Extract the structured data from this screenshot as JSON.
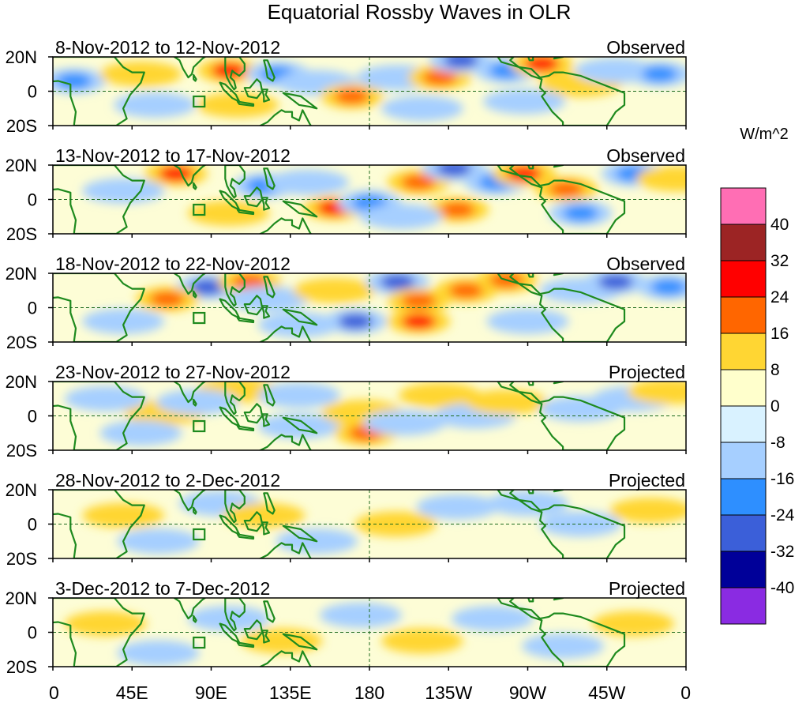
{
  "chart_data": {
    "type": "heatmap",
    "title": "Equatorial Rossby Waves in OLR",
    "units_label": "W/m^2",
    "x_ticks": [
      "0",
      "45E",
      "90E",
      "135E",
      "180",
      "135W",
      "90W",
      "45W",
      "0"
    ],
    "y_ticks": [
      "20N",
      "0",
      "20S"
    ],
    "colorbar": {
      "levels": [
        "40",
        "32",
        "24",
        "16",
        "8",
        "0",
        "-8",
        "-16",
        "-24",
        "-32",
        "-40"
      ],
      "colors": [
        "#ff6eb4",
        "#9c2424",
        "#ff0000",
        "#ff6600",
        "#ffd633",
        "#ffffcc",
        "#d9f2ff",
        "#a6cfff",
        "#2e8fff",
        "#3b5fd9",
        "#000099",
        "#8a2be2"
      ]
    },
    "panels": [
      {
        "period": "8-Nov-2012 to 12-Nov-2012",
        "status": "Observed",
        "anomalies": [
          {
            "lon": 12,
            "lat": 6,
            "value": -16
          },
          {
            "lon": 50,
            "lat": 10,
            "value": 8
          },
          {
            "lon": 100,
            "lat": 12,
            "value": 24
          },
          {
            "lon": 105,
            "lat": -8,
            "value": 8
          },
          {
            "lon": 128,
            "lat": 10,
            "value": -16
          },
          {
            "lon": 150,
            "lat": 5,
            "value": -8
          },
          {
            "lon": 170,
            "lat": -3,
            "value": 16
          },
          {
            "lon": 196,
            "lat": 8,
            "value": -8
          },
          {
            "lon": 220,
            "lat": 8,
            "value": 16
          },
          {
            "lon": 232,
            "lat": 18,
            "value": -24
          },
          {
            "lon": 258,
            "lat": 12,
            "value": -16
          },
          {
            "lon": 278,
            "lat": 16,
            "value": 24
          },
          {
            "lon": 300,
            "lat": 4,
            "value": 8
          },
          {
            "lon": 320,
            "lat": 12,
            "value": -8
          },
          {
            "lon": 345,
            "lat": 10,
            "value": -16
          },
          {
            "lon": 268,
            "lat": -6,
            "value": -8
          },
          {
            "lon": 210,
            "lat": -10,
            "value": -8
          },
          {
            "lon": 58,
            "lat": -8,
            "value": -8
          }
        ]
      },
      {
        "period": "13-Nov-2012 to 17-Nov-2012",
        "status": "Observed",
        "anomalies": [
          {
            "lon": 70,
            "lat": 15,
            "value": 24
          },
          {
            "lon": 40,
            "lat": 5,
            "value": -8
          },
          {
            "lon": 120,
            "lat": 8,
            "value": -16
          },
          {
            "lon": 100,
            "lat": -8,
            "value": 8
          },
          {
            "lon": 160,
            "lat": -5,
            "value": 24
          },
          {
            "lon": 180,
            "lat": -2,
            "value": -16
          },
          {
            "lon": 208,
            "lat": 10,
            "value": 16
          },
          {
            "lon": 228,
            "lat": 18,
            "value": -24
          },
          {
            "lon": 230,
            "lat": -6,
            "value": 16
          },
          {
            "lon": 252,
            "lat": 10,
            "value": -16
          },
          {
            "lon": 268,
            "lat": 15,
            "value": 24
          },
          {
            "lon": 292,
            "lat": 6,
            "value": 16
          },
          {
            "lon": 300,
            "lat": -8,
            "value": -16
          },
          {
            "lon": 330,
            "lat": 15,
            "value": -16
          },
          {
            "lon": 355,
            "lat": 12,
            "value": 8
          },
          {
            "lon": 145,
            "lat": 10,
            "value": -8
          },
          {
            "lon": 198,
            "lat": -10,
            "value": -8
          }
        ]
      },
      {
        "period": "18-Nov-2012 to 22-Nov-2012",
        "status": "Observed",
        "anomalies": [
          {
            "lon": 88,
            "lat": 12,
            "value": -24
          },
          {
            "lon": 65,
            "lat": 5,
            "value": 16
          },
          {
            "lon": 112,
            "lat": 15,
            "value": 16
          },
          {
            "lon": 122,
            "lat": 5,
            "value": -8
          },
          {
            "lon": 160,
            "lat": 10,
            "value": 8
          },
          {
            "lon": 172,
            "lat": -8,
            "value": -24
          },
          {
            "lon": 196,
            "lat": 15,
            "value": -24
          },
          {
            "lon": 208,
            "lat": 4,
            "value": 16
          },
          {
            "lon": 208,
            "lat": -8,
            "value": 24
          },
          {
            "lon": 235,
            "lat": 10,
            "value": 16
          },
          {
            "lon": 258,
            "lat": 16,
            "value": 16
          },
          {
            "lon": 300,
            "lat": 10,
            "value": -8
          },
          {
            "lon": 320,
            "lat": 15,
            "value": -24
          },
          {
            "lon": 350,
            "lat": 12,
            "value": -16
          },
          {
            "lon": 40,
            "lat": -8,
            "value": -8
          },
          {
            "lon": 140,
            "lat": -10,
            "value": -8
          },
          {
            "lon": 270,
            "lat": -8,
            "value": -8
          }
        ]
      },
      {
        "period": "23-Nov-2012 to 27-Nov-2012",
        "status": "Projected",
        "anomalies": [
          {
            "lon": 105,
            "lat": 15,
            "value": 8
          },
          {
            "lon": 64,
            "lat": 2,
            "value": 8
          },
          {
            "lon": 82,
            "lat": 8,
            "value": -8
          },
          {
            "lon": 140,
            "lat": 12,
            "value": -8
          },
          {
            "lon": 140,
            "lat": -6,
            "value": -8
          },
          {
            "lon": 176,
            "lat": 2,
            "value": 8
          },
          {
            "lon": 178,
            "lat": -10,
            "value": 16
          },
          {
            "lon": 200,
            "lat": -4,
            "value": -8
          },
          {
            "lon": 220,
            "lat": 12,
            "value": 8
          },
          {
            "lon": 240,
            "lat": 0,
            "value": -8
          },
          {
            "lon": 258,
            "lat": 8,
            "value": 8
          },
          {
            "lon": 300,
            "lat": 4,
            "value": -8
          },
          {
            "lon": 330,
            "lat": 10,
            "value": -8
          },
          {
            "lon": 350,
            "lat": 14,
            "value": 8
          },
          {
            "lon": 50,
            "lat": -10,
            "value": -8
          },
          {
            "lon": 30,
            "lat": 10,
            "value": -8
          }
        ]
      },
      {
        "period": "28-Nov-2012 to 2-Dec-2012",
        "status": "Projected",
        "anomalies": [
          {
            "lon": 40,
            "lat": 5,
            "value": 8
          },
          {
            "lon": 60,
            "lat": -10,
            "value": -8
          },
          {
            "lon": 95,
            "lat": 12,
            "value": -8
          },
          {
            "lon": 120,
            "lat": 5,
            "value": 8
          },
          {
            "lon": 150,
            "lat": -10,
            "value": -8
          },
          {
            "lon": 195,
            "lat": 0,
            "value": 8
          },
          {
            "lon": 230,
            "lat": 10,
            "value": -8
          },
          {
            "lon": 270,
            "lat": 12,
            "value": -8
          },
          {
            "lon": 300,
            "lat": 0,
            "value": -8
          },
          {
            "lon": 340,
            "lat": 8,
            "value": 8
          }
        ]
      },
      {
        "period": "3-Dec-2012 to 7-Dec-2012",
        "status": "Projected",
        "anomalies": [
          {
            "lon": 30,
            "lat": 5,
            "value": 8
          },
          {
            "lon": 60,
            "lat": -12,
            "value": -8
          },
          {
            "lon": 100,
            "lat": 8,
            "value": -8
          },
          {
            "lon": 130,
            "lat": -5,
            "value": 8
          },
          {
            "lon": 175,
            "lat": 10,
            "value": -8
          },
          {
            "lon": 210,
            "lat": -5,
            "value": 8
          },
          {
            "lon": 250,
            "lat": 8,
            "value": -8
          },
          {
            "lon": 290,
            "lat": -8,
            "value": -8
          },
          {
            "lon": 330,
            "lat": 5,
            "value": 8
          }
        ]
      }
    ]
  }
}
